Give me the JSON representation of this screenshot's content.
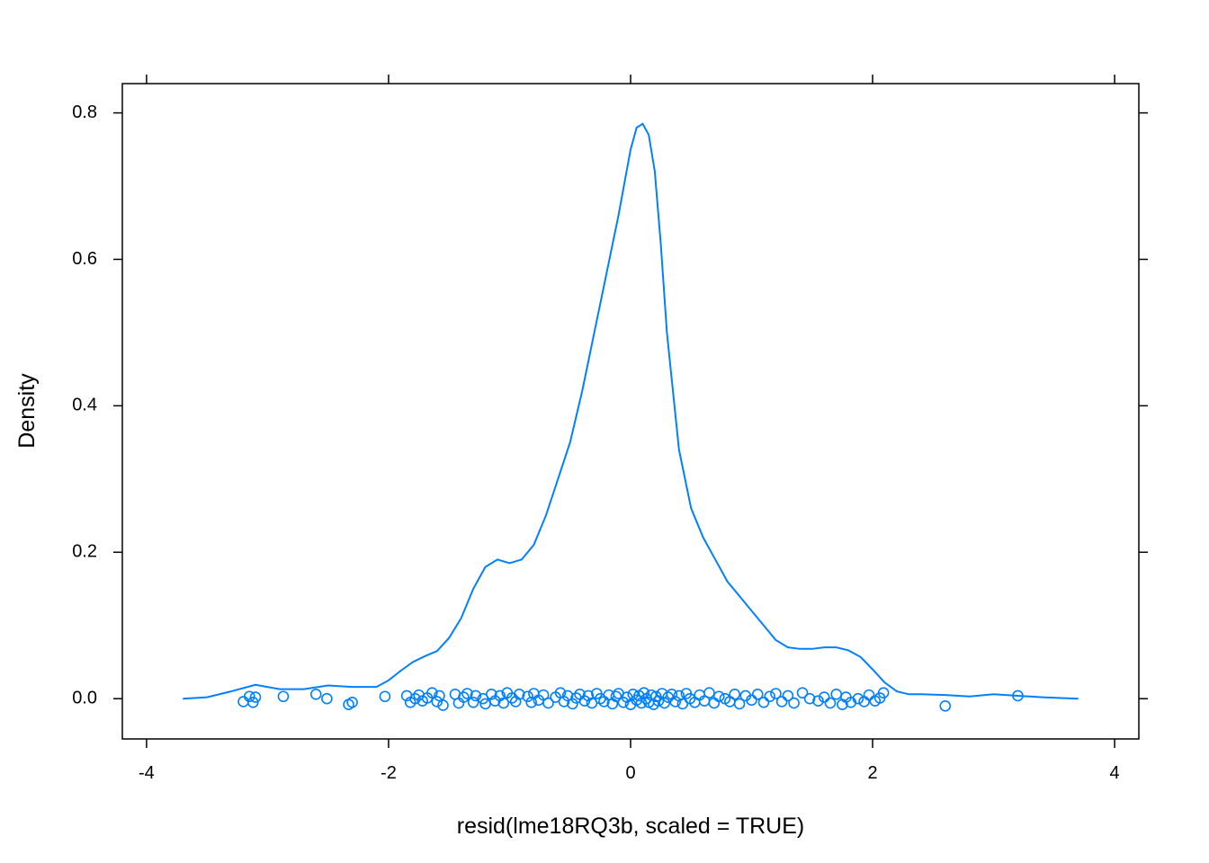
{
  "chart_data": {
    "type": "density",
    "xlabel": "resid(lme18RQ3b, scaled = TRUE)",
    "ylabel": "Density",
    "xlim": [
      -4.2,
      4.2
    ],
    "ylim": [
      -0.055,
      0.84
    ],
    "x_ticks": [
      -4,
      -2,
      0,
      2,
      4
    ],
    "y_ticks": [
      0.0,
      0.2,
      0.4,
      0.6,
      0.8
    ],
    "x_tick_labels": [
      "-4",
      "-2",
      "0",
      "2",
      "4"
    ],
    "y_tick_labels": [
      "0.0",
      "0.2",
      "0.4",
      "0.6",
      "0.8"
    ],
    "grid": false,
    "color": "#0080ff",
    "density_curve": {
      "x": [
        -3.7,
        -3.5,
        -3.3,
        -3.1,
        -2.9,
        -2.7,
        -2.5,
        -2.3,
        -2.1,
        -2.0,
        -1.9,
        -1.8,
        -1.7,
        -1.6,
        -1.5,
        -1.4,
        -1.3,
        -1.2,
        -1.1,
        -1.0,
        -0.9,
        -0.8,
        -0.7,
        -0.6,
        -0.5,
        -0.4,
        -0.3,
        -0.2,
        -0.1,
        0.0,
        0.05,
        0.1,
        0.15,
        0.2,
        0.25,
        0.3,
        0.4,
        0.5,
        0.6,
        0.7,
        0.8,
        0.9,
        1.0,
        1.1,
        1.2,
        1.3,
        1.4,
        1.5,
        1.6,
        1.7,
        1.8,
        1.9,
        2.0,
        2.1,
        2.2,
        2.3,
        2.4,
        2.6,
        2.8,
        3.0,
        3.2,
        3.4,
        3.7
      ],
      "y": [
        0.0,
        0.002,
        0.01,
        0.019,
        0.013,
        0.013,
        0.018,
        0.016,
        0.016,
        0.025,
        0.038,
        0.05,
        0.058,
        0.065,
        0.083,
        0.11,
        0.15,
        0.18,
        0.19,
        0.185,
        0.19,
        0.21,
        0.25,
        0.3,
        0.35,
        0.42,
        0.5,
        0.58,
        0.66,
        0.75,
        0.78,
        0.785,
        0.77,
        0.72,
        0.62,
        0.5,
        0.34,
        0.26,
        0.22,
        0.19,
        0.16,
        0.14,
        0.12,
        0.1,
        0.08,
        0.07,
        0.068,
        0.068,
        0.07,
        0.07,
        0.066,
        0.057,
        0.04,
        0.022,
        0.01,
        0.006,
        0.006,
        0.005,
        0.003,
        0.006,
        0.004,
        0.002,
        0.0
      ]
    },
    "rug_points": [
      {
        "x": -3.2,
        "y": -0.004
      },
      {
        "x": -3.15,
        "y": 0.003
      },
      {
        "x": -3.12,
        "y": -0.005
      },
      {
        "x": -3.1,
        "y": 0.002
      },
      {
        "x": -2.87,
        "y": 0.003
      },
      {
        "x": -2.6,
        "y": 0.006
      },
      {
        "x": -2.51,
        "y": 0.0
      },
      {
        "x": -2.33,
        "y": -0.008
      },
      {
        "x": -2.3,
        "y": -0.005
      },
      {
        "x": -2.03,
        "y": 0.003
      },
      {
        "x": -1.85,
        "y": 0.004
      },
      {
        "x": -1.82,
        "y": -0.005
      },
      {
        "x": -1.78,
        "y": 0.0
      },
      {
        "x": -1.75,
        "y": 0.005
      },
      {
        "x": -1.72,
        "y": -0.003
      },
      {
        "x": -1.68,
        "y": 0.001
      },
      {
        "x": -1.64,
        "y": 0.008
      },
      {
        "x": -1.6,
        "y": -0.004
      },
      {
        "x": -1.58,
        "y": 0.004
      },
      {
        "x": -1.55,
        "y": -0.009
      },
      {
        "x": -1.45,
        "y": 0.006
      },
      {
        "x": -1.42,
        "y": -0.006
      },
      {
        "x": -1.38,
        "y": 0.002
      },
      {
        "x": -1.35,
        "y": 0.007
      },
      {
        "x": -1.3,
        "y": -0.005
      },
      {
        "x": -1.28,
        "y": 0.004
      },
      {
        "x": -1.22,
        "y": 0.0
      },
      {
        "x": -1.2,
        "y": -0.007
      },
      {
        "x": -1.15,
        "y": 0.006
      },
      {
        "x": -1.12,
        "y": -0.003
      },
      {
        "x": -1.08,
        "y": 0.004
      },
      {
        "x": -1.05,
        "y": -0.006
      },
      {
        "x": -1.02,
        "y": 0.008
      },
      {
        "x": -0.98,
        "y": 0.001
      },
      {
        "x": -0.95,
        "y": -0.004
      },
      {
        "x": -0.92,
        "y": 0.006
      },
      {
        "x": -0.85,
        "y": 0.003
      },
      {
        "x": -0.82,
        "y": -0.005
      },
      {
        "x": -0.8,
        "y": 0.007
      },
      {
        "x": -0.76,
        "y": -0.002
      },
      {
        "x": -0.72,
        "y": 0.005
      },
      {
        "x": -0.68,
        "y": -0.006
      },
      {
        "x": -0.62,
        "y": 0.002
      },
      {
        "x": -0.58,
        "y": 0.008
      },
      {
        "x": -0.55,
        "y": -0.004
      },
      {
        "x": -0.52,
        "y": 0.004
      },
      {
        "x": -0.48,
        "y": -0.007
      },
      {
        "x": -0.45,
        "y": 0.001
      },
      {
        "x": -0.42,
        "y": 0.006
      },
      {
        "x": -0.38,
        "y": -0.003
      },
      {
        "x": -0.35,
        "y": 0.004
      },
      {
        "x": -0.32,
        "y": -0.006
      },
      {
        "x": -0.28,
        "y": 0.007
      },
      {
        "x": -0.25,
        "y": 0.0
      },
      {
        "x": -0.22,
        "y": -0.004
      },
      {
        "x": -0.18,
        "y": 0.005
      },
      {
        "x": -0.15,
        "y": -0.007
      },
      {
        "x": -0.12,
        "y": 0.003
      },
      {
        "x": -0.1,
        "y": 0.007
      },
      {
        "x": -0.06,
        "y": -0.005
      },
      {
        "x": -0.03,
        "y": 0.002
      },
      {
        "x": 0.0,
        "y": -0.008
      },
      {
        "x": 0.02,
        "y": 0.006
      },
      {
        "x": 0.05,
        "y": -0.002
      },
      {
        "x": 0.07,
        "y": 0.004
      },
      {
        "x": 0.09,
        "y": -0.006
      },
      {
        "x": 0.11,
        "y": 0.008
      },
      {
        "x": 0.13,
        "y": 0.0
      },
      {
        "x": 0.15,
        "y": -0.005
      },
      {
        "x": 0.17,
        "y": 0.005
      },
      {
        "x": 0.19,
        "y": -0.008
      },
      {
        "x": 0.21,
        "y": 0.003
      },
      {
        "x": 0.23,
        "y": -0.003
      },
      {
        "x": 0.26,
        "y": 0.007
      },
      {
        "x": 0.28,
        "y": -0.006
      },
      {
        "x": 0.31,
        "y": 0.002
      },
      {
        "x": 0.34,
        "y": 0.006
      },
      {
        "x": 0.37,
        "y": -0.004
      },
      {
        "x": 0.4,
        "y": 0.004
      },
      {
        "x": 0.43,
        "y": -0.007
      },
      {
        "x": 0.46,
        "y": 0.007
      },
      {
        "x": 0.49,
        "y": 0.0
      },
      {
        "x": 0.53,
        "y": -0.005
      },
      {
        "x": 0.57,
        "y": 0.005
      },
      {
        "x": 0.61,
        "y": -0.003
      },
      {
        "x": 0.65,
        "y": 0.008
      },
      {
        "x": 0.69,
        "y": -0.006
      },
      {
        "x": 0.73,
        "y": 0.003
      },
      {
        "x": 0.78,
        "y": 0.0
      },
      {
        "x": 0.82,
        "y": -0.004
      },
      {
        "x": 0.86,
        "y": 0.006
      },
      {
        "x": 0.9,
        "y": -0.007
      },
      {
        "x": 0.95,
        "y": 0.004
      },
      {
        "x": 1.0,
        "y": -0.002
      },
      {
        "x": 1.05,
        "y": 0.006
      },
      {
        "x": 1.1,
        "y": -0.005
      },
      {
        "x": 1.15,
        "y": 0.003
      },
      {
        "x": 1.2,
        "y": 0.007
      },
      {
        "x": 1.25,
        "y": -0.004
      },
      {
        "x": 1.3,
        "y": 0.004
      },
      {
        "x": 1.35,
        "y": -0.006
      },
      {
        "x": 1.42,
        "y": 0.008
      },
      {
        "x": 1.48,
        "y": 0.0
      },
      {
        "x": 1.55,
        "y": -0.003
      },
      {
        "x": 1.6,
        "y": 0.002
      },
      {
        "x": 1.65,
        "y": -0.006
      },
      {
        "x": 1.7,
        "y": 0.006
      },
      {
        "x": 1.75,
        "y": -0.008
      },
      {
        "x": 1.78,
        "y": 0.002
      },
      {
        "x": 1.82,
        "y": -0.005
      },
      {
        "x": 1.88,
        "y": 0.0
      },
      {
        "x": 1.93,
        "y": -0.004
      },
      {
        "x": 1.97,
        "y": 0.005
      },
      {
        "x": 2.02,
        "y": -0.003
      },
      {
        "x": 2.06,
        "y": 0.001
      },
      {
        "x": 2.09,
        "y": 0.008
      },
      {
        "x": 2.6,
        "y": -0.01
      },
      {
        "x": 3.2,
        "y": 0.004
      }
    ]
  }
}
